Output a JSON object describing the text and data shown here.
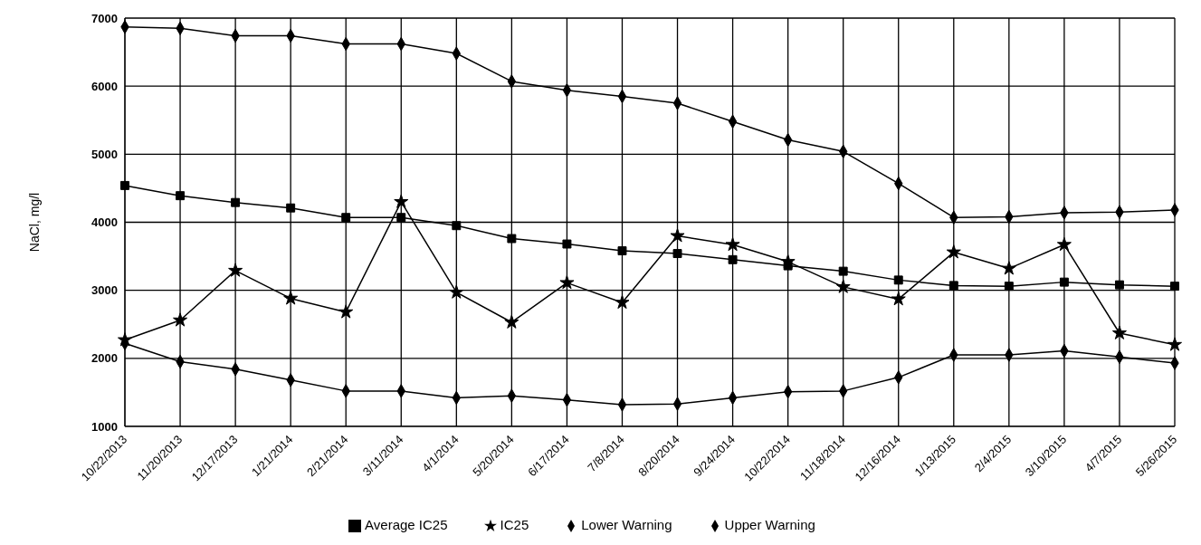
{
  "chart_data": {
    "type": "line",
    "ylabel": "NaCl, mg/l",
    "categories": [
      "10/22/2013",
      "11/20/2013",
      "12/17/2013",
      "1/21/2014",
      "2/21/2014",
      "3/11/2014",
      "4/1/2014",
      "5/20/2014",
      "6/17/2014",
      "7/8/2014",
      "8/20/2014",
      "9/24/2014",
      "10/22/2014",
      "11/18/2014",
      "12/16/2014",
      "1/13/2015",
      "2/4/2015",
      "3/10/2015",
      "4/7/2015",
      "5/26/2015"
    ],
    "series": [
      {
        "name": "IC25",
        "color": "#000000",
        "marker": "star",
        "values": [
          2270,
          2560,
          3290,
          2880,
          2680,
          4300,
          2970,
          2530,
          3110,
          2820,
          3800,
          3670,
          3420,
          3050,
          2870,
          3560,
          3320,
          3670,
          2370,
          2200
        ]
      },
      {
        "name": "Average IC25",
        "color": "#000000",
        "marker": "square",
        "values": [
          4540,
          4390,
          4290,
          4210,
          4070,
          4070,
          3950,
          3760,
          3680,
          3580,
          3540,
          3450,
          3360,
          3280,
          3150,
          3070,
          3060,
          3120,
          3080,
          3060
        ]
      },
      {
        "name": "Lower Warning",
        "color": "#000000",
        "marker": "diamond",
        "values": [
          2220,
          1950,
          1840,
          1680,
          1520,
          1520,
          1420,
          1450,
          1390,
          1320,
          1330,
          1420,
          1510,
          1520,
          1720,
          2050,
          2050,
          2110,
          2020,
          1930
        ]
      },
      {
        "name": "Upper Warning",
        "color": "#000000",
        "marker": "diamond",
        "values": [
          6870,
          6850,
          6740,
          6740,
          6620,
          6620,
          6480,
          6070,
          5940,
          5850,
          5750,
          5480,
          5210,
          5040,
          4570,
          4070,
          4080,
          4140,
          4150,
          4180
        ]
      }
    ],
    "ylim": [
      1000,
      7000
    ],
    "yticks": [
      1000,
      2000,
      3000,
      4000,
      5000,
      6000,
      7000
    ],
    "grid": true,
    "legend": "bottom",
    "line_style": "solid"
  }
}
